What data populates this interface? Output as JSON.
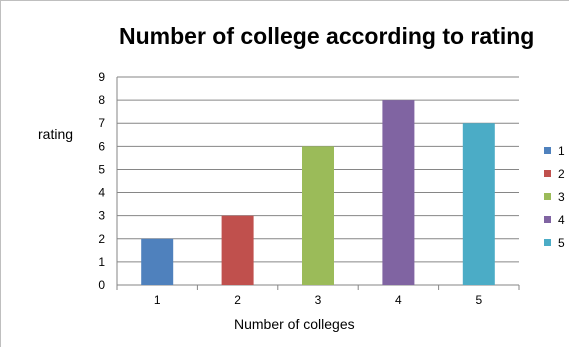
{
  "chart_data": {
    "type": "bar",
    "title": "Number of college according to rating",
    "xlabel": "Number of colleges",
    "ylabel": "rating",
    "categories": [
      "1",
      "2",
      "3",
      "4",
      "5"
    ],
    "values": [
      2,
      3,
      6,
      8,
      7
    ],
    "colors": [
      "#4f81bd",
      "#c0504d",
      "#9bbb59",
      "#8064a2",
      "#4bacc6"
    ],
    "ylim": [
      0,
      9
    ],
    "yticks": [
      "0",
      "1",
      "2",
      "3",
      "4",
      "5",
      "6",
      "7",
      "8",
      "9"
    ],
    "grid": true,
    "legend": {
      "position": "right",
      "entries": [
        "1",
        "2",
        "3",
        "4",
        "5"
      ]
    }
  }
}
